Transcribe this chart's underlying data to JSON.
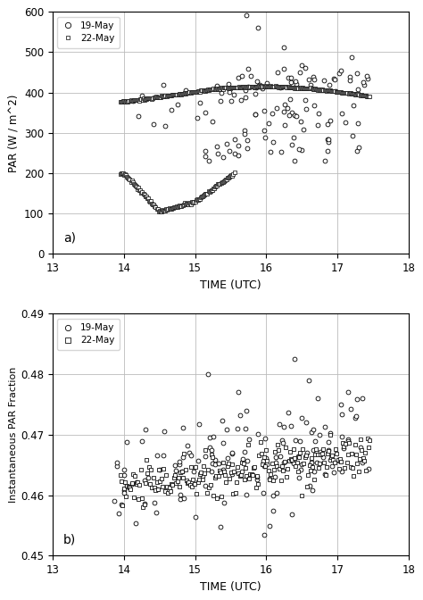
{
  "fig_width": 4.74,
  "fig_height": 6.72,
  "dpi": 100,
  "xlim": [
    13,
    18
  ],
  "xticks": [
    13,
    14,
    15,
    16,
    17,
    18
  ],
  "panel_a": {
    "ylabel": "PAR (W / m^2)",
    "xlabel": "TIME (UTC)",
    "ylim": [
      0,
      600
    ],
    "yticks": [
      0,
      100,
      200,
      300,
      400,
      500,
      600
    ],
    "label": "a)",
    "legend_19may": "19-May",
    "legend_22may": "22-May"
  },
  "panel_b": {
    "ylabel": "Instantaneous PAR Fraction",
    "xlabel": "TIME (UTC)",
    "ylim": [
      0.45,
      0.49
    ],
    "yticks": [
      0.45,
      0.46,
      0.47,
      0.48,
      0.49
    ],
    "label": "b)",
    "legend_19may": "19-May",
    "legend_22may": "22-May"
  },
  "marker_color": "black",
  "marker_facecolor": "white",
  "grid_color": "#bbbbbb"
}
